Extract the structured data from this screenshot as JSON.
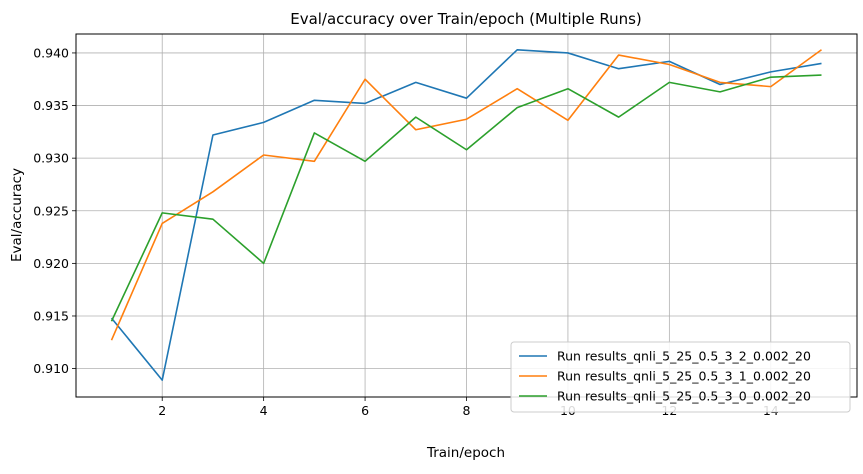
{
  "chart_data": {
    "type": "line",
    "title": "Eval/accuracy over Train/epoch (Multiple Runs)",
    "xlabel": "Train/epoch",
    "ylabel": "Eval/accuracy",
    "xlim": [
      0.3,
      15.7
    ],
    "ylim": [
      0.9073,
      0.9418
    ],
    "xticks": [
      2,
      4,
      6,
      8,
      10,
      12,
      14
    ],
    "yticks": [
      0.91,
      0.915,
      0.92,
      0.925,
      0.93,
      0.935,
      0.94
    ],
    "grid": true,
    "legend_position": "lower-right",
    "x": [
      1,
      2,
      3,
      4,
      5,
      6,
      7,
      8,
      9,
      10,
      11,
      12,
      13,
      14,
      15
    ],
    "series": [
      {
        "name": "Run results_qnli_5_25_0.5_3_2_0.002_20",
        "color": "#1f77b4",
        "values": [
          0.9148,
          0.9089,
          0.9322,
          0.9334,
          0.9355,
          0.9352,
          0.9372,
          0.9357,
          0.9403,
          0.94,
          0.9385,
          0.9392,
          0.937,
          0.9382,
          0.939
        ]
      },
      {
        "name": "Run results_qnli_5_25_0.5_3_1_0.002_20",
        "color": "#ff7f0e",
        "values": [
          0.9127,
          0.9238,
          0.9268,
          0.9303,
          0.9297,
          0.9375,
          0.9327,
          0.9337,
          0.9366,
          0.9336,
          0.9398,
          0.9389,
          0.9372,
          0.9368,
          0.9403
        ]
      },
      {
        "name": "Run results_qnli_5_25_0.5_3_0_0.002_20",
        "color": "#2ca02c",
        "values": [
          0.9145,
          0.9248,
          0.9242,
          0.92,
          0.9324,
          0.9297,
          0.9339,
          0.9308,
          0.9348,
          0.9366,
          0.9339,
          0.9372,
          0.9363,
          0.9377,
          0.9379
        ]
      }
    ]
  }
}
